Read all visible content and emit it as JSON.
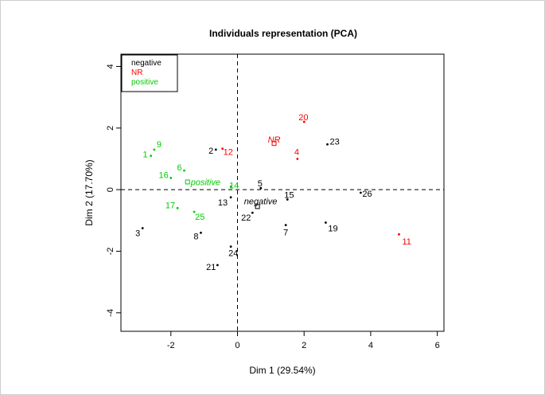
{
  "chart_data": {
    "type": "scatter",
    "title": "Individuals representation (PCA)",
    "xlabel": "Dim 1 (29.54%)",
    "ylabel": "Dim 2 (17.70%)",
    "xlim": [
      -3.5,
      6.2
    ],
    "ylim": [
      -4.6,
      4.4
    ],
    "xticks": [
      -2,
      0,
      2,
      4,
      6
    ],
    "yticks": [
      -4,
      -2,
      0,
      2,
      4
    ],
    "grid": false,
    "reference_lines": [
      "x=0",
      "y=0"
    ],
    "legend": {
      "placement": "top-left",
      "entries": [
        {
          "label": "negative",
          "color": "#000000"
        },
        {
          "label": "NR",
          "color": "#ff0000"
        },
        {
          "label": "positive",
          "color": "#00cc00"
        }
      ]
    },
    "colors": {
      "negative": "#000000",
      "NR": "#ff0000",
      "positive": "#00cc00"
    },
    "points": [
      {
        "label": "1",
        "group": "positive",
        "x": -2.6,
        "y": 1.1
      },
      {
        "label": "9",
        "group": "positive",
        "x": -2.5,
        "y": 1.3
      },
      {
        "label": "6",
        "group": "positive",
        "x": -1.6,
        "y": 0.62
      },
      {
        "label": "16",
        "group": "positive",
        "x": -2.0,
        "y": 0.38
      },
      {
        "label": "17",
        "group": "positive",
        "x": -1.8,
        "y": -0.6
      },
      {
        "label": "25",
        "group": "positive",
        "x": -1.3,
        "y": -0.72
      },
      {
        "label": "14",
        "group": "positive",
        "x": -0.2,
        "y": 0.1
      },
      {
        "label": "2",
        "group": "negative",
        "x": -0.65,
        "y": 1.3
      },
      {
        "label": "3",
        "group": "negative",
        "x": -2.85,
        "y": -1.25
      },
      {
        "label": "5",
        "group": "negative",
        "x": 0.7,
        "y": 0.05
      },
      {
        "label": "7",
        "group": "negative",
        "x": 1.45,
        "y": -1.15
      },
      {
        "label": "8",
        "group": "negative",
        "x": -1.1,
        "y": -1.4
      },
      {
        "label": "13",
        "group": "negative",
        "x": -0.2,
        "y": -0.25
      },
      {
        "label": "15",
        "group": "negative",
        "x": 1.5,
        "y": -0.32
      },
      {
        "label": "19",
        "group": "negative",
        "x": 2.65,
        "y": -1.07
      },
      {
        "label": "21",
        "group": "negative",
        "x": -0.6,
        "y": -2.45
      },
      {
        "label": "22",
        "group": "negative",
        "x": 0.45,
        "y": -0.75
      },
      {
        "label": "23",
        "group": "negative",
        "x": 2.7,
        "y": 1.47
      },
      {
        "label": "24",
        "group": "negative",
        "x": -0.2,
        "y": -1.85
      },
      {
        "label": "26",
        "group": "negative",
        "x": 3.7,
        "y": -0.1
      },
      {
        "label": "4",
        "group": "NR",
        "x": 1.8,
        "y": 1.0
      },
      {
        "label": "11",
        "group": "NR",
        "x": 4.85,
        "y": -1.45
      },
      {
        "label": "12",
        "group": "NR",
        "x": -0.45,
        "y": 1.33
      },
      {
        "label": "20",
        "group": "NR",
        "x": 2.0,
        "y": 2.2
      }
    ],
    "centroids": [
      {
        "label": "positive",
        "group": "positive",
        "x": -1.5,
        "y": 0.25
      },
      {
        "label": "negative",
        "group": "negative",
        "x": 0.6,
        "y": -0.55
      },
      {
        "label": "NR",
        "group": "NR",
        "x": 1.1,
        "y": 1.5
      }
    ]
  }
}
